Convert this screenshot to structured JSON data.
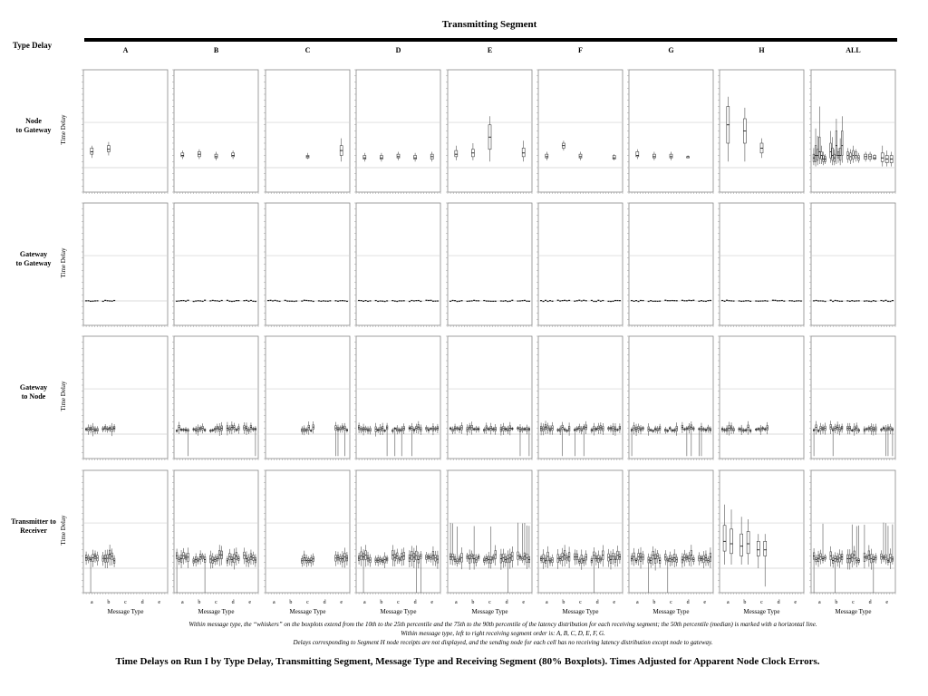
{
  "header": {
    "title": "Transmitting Segment",
    "row_header": "Type Delay"
  },
  "columns": [
    "A",
    "B",
    "C",
    "D",
    "E",
    "F",
    "G",
    "H",
    "ALL"
  ],
  "rows": [
    {
      "label": "Node\nto Gateway",
      "ylabel": "Time Delay"
    },
    {
      "label": "Gateway\nto Gateway",
      "ylabel": "Time Delay"
    },
    {
      "label": "Gateway\nto Node",
      "ylabel": "Time Delay"
    },
    {
      "label": "Transmitter to\nReceiver",
      "ylabel": "Time Delay"
    }
  ],
  "x_axis": {
    "ticks": [
      "a",
      "b",
      "c",
      "d",
      "e"
    ],
    "label": "Message Type"
  },
  "footnotes": [
    "Within message type, the “whiskers” on the boxplots extend from the 10th to the 25th percentile and the 75th to the 90th percentile of the latency distribution for each receiving segment; the 50th percentile (median) is marked with a horizontal line.",
    "Within message type, left to right receiving segment order is: A, B, C, D, E, F, G.",
    "Delays corresponding to Segment H node receipts are not displayed, and the sending node for each cell has no receiving latency distribution except node to gateway."
  ],
  "caption": "Time Delays on Run I by Type Delay, Transmitting Segment, Message Type and Receiving Segment (80% Boxplots). Times Adjusted for Apparent Node Clock Errors.",
  "chart_data": {
    "type": "boxplot",
    "title": "Transmitting Segment",
    "xlabel": "Message Type",
    "ylabel": "Time Delay",
    "x_categories": [
      "a",
      "b",
      "c",
      "d",
      "e"
    ],
    "y_range": [
      0,
      1
    ],
    "panels": [
      {
        "row": "Node to Gateway",
        "col": "A",
        "boxes": [
          [
            0,
            0,
            0.28,
            0.31,
            0.33,
            0.36,
            0.38
          ],
          [
            1,
            0,
            0.3,
            0.33,
            0.35,
            0.38,
            0.41
          ]
        ]
      },
      {
        "row": "Node to Gateway",
        "col": "B",
        "boxes": [
          [
            0,
            0,
            0.27,
            0.29,
            0.3,
            0.32,
            0.34
          ],
          [
            1,
            0,
            0.27,
            0.29,
            0.31,
            0.33,
            0.35
          ],
          [
            2,
            0,
            0.26,
            0.28,
            0.29,
            0.31,
            0.33
          ],
          [
            3,
            0,
            0.27,
            0.29,
            0.3,
            0.32,
            0.34
          ]
        ]
      },
      {
        "row": "Node to Gateway",
        "col": "C",
        "boxes": [
          [
            2,
            0,
            0.27,
            0.28,
            0.29,
            0.3,
            0.32
          ],
          [
            4,
            0,
            0.25,
            0.3,
            0.34,
            0.38,
            0.44
          ]
        ]
      },
      {
        "row": "Node to Gateway",
        "col": "D",
        "boxes": [
          [
            0,
            0,
            0.25,
            0.27,
            0.28,
            0.3,
            0.32
          ],
          [
            1,
            0,
            0.25,
            0.27,
            0.28,
            0.3,
            0.32
          ],
          [
            2,
            0,
            0.26,
            0.28,
            0.29,
            0.31,
            0.33
          ],
          [
            3,
            0,
            0.25,
            0.27,
            0.28,
            0.3,
            0.32
          ],
          [
            4,
            0,
            0.25,
            0.27,
            0.29,
            0.31,
            0.33
          ]
        ]
      },
      {
        "row": "Node to Gateway",
        "col": "E",
        "boxes": [
          [
            0,
            0,
            0.26,
            0.29,
            0.31,
            0.34,
            0.38
          ],
          [
            1,
            0,
            0.26,
            0.29,
            0.32,
            0.35,
            0.4
          ],
          [
            2,
            0,
            0.25,
            0.35,
            0.45,
            0.55,
            0.62
          ],
          [
            4,
            0,
            0.25,
            0.29,
            0.32,
            0.36,
            0.42
          ]
        ]
      },
      {
        "row": "Node to Gateway",
        "col": "F",
        "boxes": [
          [
            0,
            0,
            0.26,
            0.28,
            0.29,
            0.31,
            0.33
          ],
          [
            1,
            0,
            0.34,
            0.36,
            0.38,
            0.4,
            0.42
          ],
          [
            2,
            0,
            0.26,
            0.28,
            0.29,
            0.31,
            0.33
          ],
          [
            4,
            0,
            0.26,
            0.27,
            0.28,
            0.3,
            0.31
          ]
        ]
      },
      {
        "row": "Node to Gateway",
        "col": "G",
        "boxes": [
          [
            0,
            0,
            0.27,
            0.29,
            0.3,
            0.33,
            0.35
          ],
          [
            1,
            0,
            0.26,
            0.28,
            0.29,
            0.31,
            0.33
          ],
          [
            2,
            0,
            0.26,
            0.28,
            0.29,
            0.31,
            0.33
          ],
          [
            3,
            0,
            0.28,
            0.28,
            0.29,
            0.29,
            0.3
          ]
        ]
      },
      {
        "row": "Node to Gateway",
        "col": "H",
        "boxes": [
          [
            0,
            0,
            0.25,
            0.4,
            0.55,
            0.7,
            0.78
          ],
          [
            1,
            0,
            0.25,
            0.4,
            0.5,
            0.6,
            0.69
          ],
          [
            2,
            0,
            0.28,
            0.32,
            0.36,
            0.4,
            0.44
          ]
        ]
      },
      {
        "row": "Node to Gateway",
        "col": "ALL",
        "boxes": [
          [
            0,
            0,
            0.22,
            0.25,
            0.28,
            0.31,
            0.36
          ],
          [
            0,
            1,
            0.21,
            0.25,
            0.3,
            0.38,
            0.52
          ],
          [
            0,
            2,
            0.22,
            0.26,
            0.3,
            0.35,
            0.46
          ],
          [
            0,
            3,
            0.23,
            0.28,
            0.33,
            0.45,
            0.7
          ],
          [
            0,
            4,
            0.23,
            0.27,
            0.3,
            0.33,
            0.38
          ],
          [
            0,
            5,
            0.22,
            0.25,
            0.27,
            0.3,
            0.33
          ],
          [
            0,
            6,
            0.23,
            0.25,
            0.27,
            0.29,
            0.31
          ],
          [
            1,
            0,
            0.24,
            0.28,
            0.33,
            0.4,
            0.5
          ],
          [
            1,
            1,
            0.22,
            0.26,
            0.3,
            0.36,
            0.45
          ],
          [
            1,
            2,
            0.22,
            0.25,
            0.28,
            0.31,
            0.35
          ],
          [
            1,
            3,
            0.23,
            0.3,
            0.38,
            0.5,
            0.6
          ],
          [
            1,
            4,
            0.24,
            0.28,
            0.3,
            0.33,
            0.36
          ],
          [
            1,
            5,
            0.22,
            0.26,
            0.3,
            0.36,
            0.44
          ],
          [
            1,
            6,
            0.24,
            0.3,
            0.38,
            0.5,
            0.62
          ],
          [
            2,
            0,
            0.24,
            0.27,
            0.3,
            0.33,
            0.36
          ],
          [
            2,
            1,
            0.23,
            0.26,
            0.29,
            0.32,
            0.35
          ],
          [
            2,
            2,
            0.24,
            0.27,
            0.3,
            0.34,
            0.38
          ],
          [
            2,
            3,
            0.25,
            0.28,
            0.3,
            0.33,
            0.35
          ],
          [
            2,
            4,
            0.24,
            0.26,
            0.28,
            0.3,
            0.32
          ],
          [
            3,
            0,
            0.25,
            0.27,
            0.29,
            0.31,
            0.33
          ],
          [
            3,
            1,
            0.25,
            0.27,
            0.29,
            0.31,
            0.33
          ],
          [
            3,
            2,
            0.26,
            0.27,
            0.28,
            0.3,
            0.31
          ],
          [
            4,
            0,
            0.21,
            0.25,
            0.28,
            0.32,
            0.38
          ],
          [
            4,
            1,
            0.21,
            0.24,
            0.27,
            0.3,
            0.34
          ],
          [
            4,
            2,
            0.21,
            0.24,
            0.27,
            0.3,
            0.33
          ]
        ]
      },
      {
        "row": "Gateway to Gateway",
        "col": "all",
        "note": "all boxes collapsed near 0.2"
      },
      {
        "row": "Gateway to Node",
        "col": "all",
        "note": "most boxes near 0.23–0.28 with occasional long lower whiskers"
      },
      {
        "row": "Transmitter to Receiver",
        "col": "H",
        "boxes": [
          [
            0,
            0,
            0.23,
            0.34,
            0.42,
            0.55,
            0.72
          ],
          [
            0,
            1,
            0.23,
            0.32,
            0.4,
            0.52,
            0.68
          ],
          [
            1,
            0,
            0.23,
            0.3,
            0.38,
            0.48,
            0.62
          ],
          [
            1,
            1,
            0.23,
            0.32,
            0.4,
            0.5,
            0.6
          ],
          [
            2,
            0,
            0.2,
            0.3,
            0.35,
            0.42,
            0.48
          ],
          [
            2,
            1,
            0.05,
            0.3,
            0.35,
            0.42,
            0.48
          ]
        ]
      }
    ]
  }
}
